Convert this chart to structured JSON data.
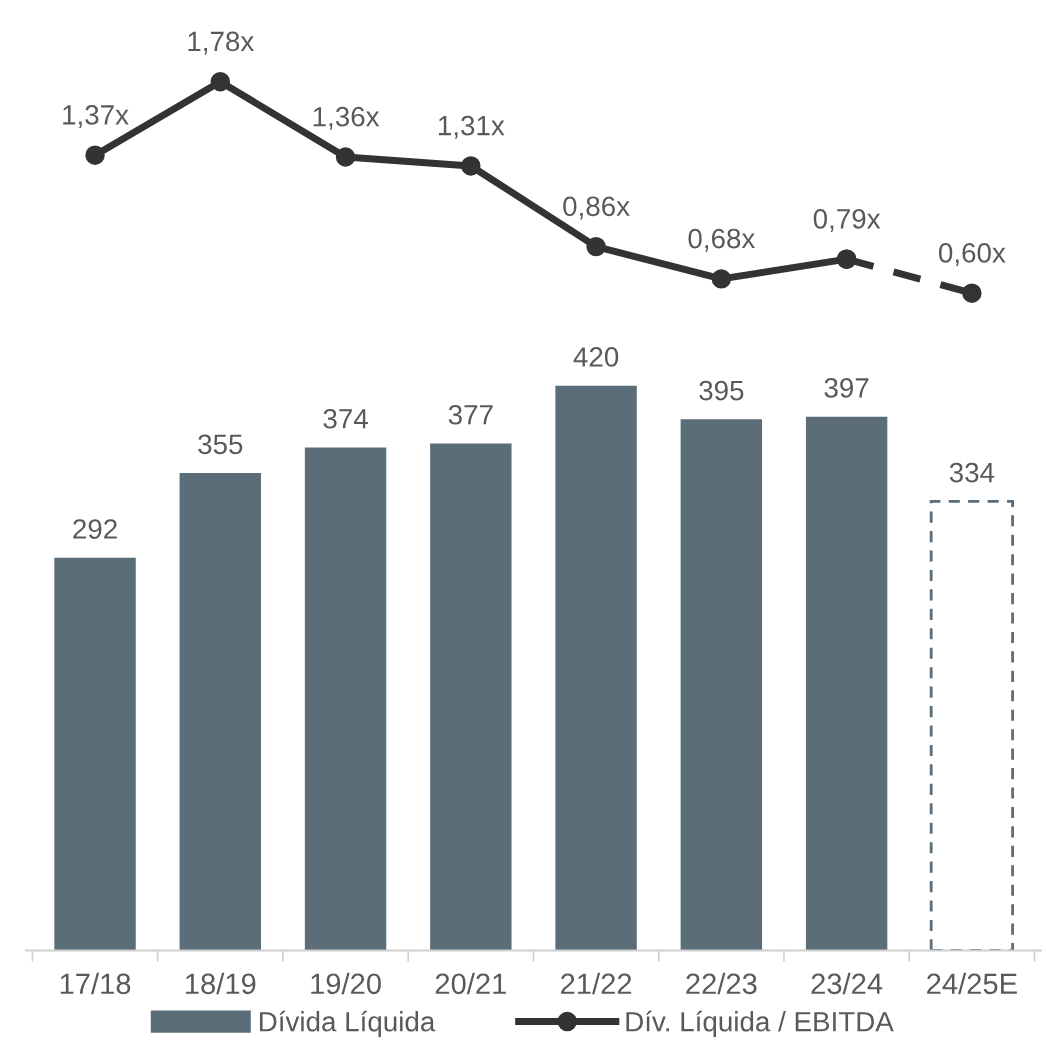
{
  "chart_data": [
    {
      "type": "line",
      "categories": [
        null,
        null,
        null,
        null,
        null,
        null,
        null,
        null
      ],
      "tick_labels": false,
      "grid": false,
      "legend": "bottom",
      "series": [
        {
          "name": "Dív. Líquida / EBITDA",
          "color": "#333333",
          "marker": "circle",
          "line_style": "solid",
          "values": [
            1.37,
            1.78,
            1.36,
            1.31,
            0.86,
            0.68,
            0.79,
            null
          ],
          "value_labels": [
            "1,37x",
            "1,78x",
            "1,36x",
            "1,31x",
            "0,86x",
            "0,68x",
            "0,79x",
            null
          ]
        },
        {
          "color": "#333333",
          "marker": "circle",
          "line_style": "dashed",
          "values": [
            null,
            null,
            null,
            null,
            null,
            null,
            0.79,
            0.6
          ],
          "value_labels": [
            null,
            null,
            null,
            null,
            null,
            null,
            null,
            "0,60x"
          ]
        }
      ]
    },
    {
      "type": "bar",
      "categories": [
        "17/18",
        "18/19",
        "19/20",
        "20/21",
        "21/22",
        "22/23",
        "23/24",
        "24/25E"
      ],
      "tick_labels": "x",
      "grid": false,
      "legend": "bottom",
      "data_labels": true,
      "series": [
        {
          "name": "Dívida Líquida",
          "color": "#5a6d79",
          "values": [
            292,
            355,
            374,
            377,
            420,
            395,
            397,
            null
          ]
        },
        {
          "color": "#ffffff",
          "line_style": "dashed",
          "values": [
            null,
            null,
            null,
            null,
            null,
            null,
            null,
            334
          ]
        }
      ]
    }
  ]
}
